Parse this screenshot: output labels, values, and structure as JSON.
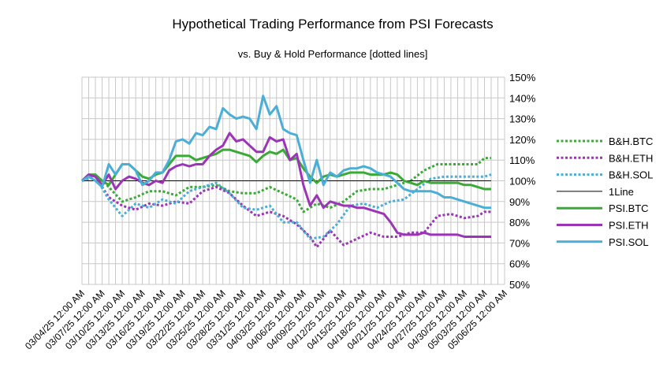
{
  "chart_data": {
    "type": "line",
    "title": "Hypothetical Trading Performance from PSI Forecasts",
    "subtitle": "vs. Buy & Hold Performance [dotted lines]",
    "xlabel": "",
    "ylabel": "",
    "ylim": [
      0.5,
      1.5
    ],
    "yticks": [
      "50%",
      "60%",
      "70%",
      "80%",
      "90%",
      "100%",
      "110%",
      "120%",
      "130%",
      "140%",
      "150%"
    ],
    "x_tick_labels": [
      "03/04/25 12:00 AM",
      "03/07/25 12:00 AM",
      "03/10/25 12:00 AM",
      "03/13/25 12:00 AM",
      "03/16/25 12:00 AM",
      "03/19/25 12:00 AM",
      "03/22/25 12:00 AM",
      "03/25/25 12:00 AM",
      "03/28/25 12:00 AM",
      "03/31/25 12:00 AM",
      "04/03/25 12:00 AM",
      "04/06/25 12:00 AM",
      "04/09/25 12:00 AM",
      "04/12/25 12:00 AM",
      "04/15/25 12:00 AM",
      "04/18/25 12:00 AM",
      "04/21/25 12:00 AM",
      "04/24/25 12:00 AM",
      "04/27/25 12:00 AM",
      "04/30/25 12:00 AM",
      "05/03/25 12:00 AM",
      "05/06/25 12:00 AM"
    ],
    "x_days": 63,
    "grid": true,
    "legend_position": "right",
    "series": [
      {
        "name": "B&H.BTC",
        "color": "#3aa935",
        "dash": "dotted",
        "points": [
          [
            0,
            1.0
          ],
          [
            2,
            1.03
          ],
          [
            4,
            0.97
          ],
          [
            6,
            0.9
          ],
          [
            8,
            0.92
          ],
          [
            10,
            0.95
          ],
          [
            12,
            0.95
          ],
          [
            14,
            0.93
          ],
          [
            16,
            0.97
          ],
          [
            18,
            0.97
          ],
          [
            20,
            0.98
          ],
          [
            22,
            0.95
          ],
          [
            24,
            0.94
          ],
          [
            26,
            0.94
          ],
          [
            28,
            0.97
          ],
          [
            30,
            0.94
          ],
          [
            32,
            0.91
          ],
          [
            33,
            0.85
          ],
          [
            35,
            0.89
          ],
          [
            37,
            0.87
          ],
          [
            39,
            0.9
          ],
          [
            41,
            0.95
          ],
          [
            43,
            0.96
          ],
          [
            45,
            0.96
          ],
          [
            47,
            0.98
          ],
          [
            49,
            1.0
          ],
          [
            51,
            1.05
          ],
          [
            53,
            1.08
          ],
          [
            55,
            1.08
          ],
          [
            57,
            1.08
          ],
          [
            59,
            1.08
          ],
          [
            60,
            1.11
          ],
          [
            61,
            1.11
          ]
        ]
      },
      {
        "name": "B&H.ETH",
        "color": "#9b35b5",
        "dash": "dotted",
        "points": [
          [
            0,
            1.0
          ],
          [
            2,
            1.02
          ],
          [
            4,
            0.92
          ],
          [
            6,
            0.88
          ],
          [
            8,
            0.86
          ],
          [
            10,
            0.89
          ],
          [
            12,
            0.88
          ],
          [
            14,
            0.9
          ],
          [
            16,
            0.89
          ],
          [
            18,
            0.95
          ],
          [
            20,
            0.97
          ],
          [
            22,
            0.94
          ],
          [
            24,
            0.88
          ],
          [
            26,
            0.83
          ],
          [
            28,
            0.85
          ],
          [
            30,
            0.83
          ],
          [
            32,
            0.79
          ],
          [
            34,
            0.73
          ],
          [
            35,
            0.68
          ],
          [
            37,
            0.76
          ],
          [
            39,
            0.69
          ],
          [
            41,
            0.72
          ],
          [
            43,
            0.75
          ],
          [
            45,
            0.73
          ],
          [
            47,
            0.73
          ],
          [
            49,
            0.75
          ],
          [
            51,
            0.75
          ],
          [
            53,
            0.83
          ],
          [
            55,
            0.84
          ],
          [
            57,
            0.82
          ],
          [
            59,
            0.83
          ],
          [
            60,
            0.85
          ],
          [
            61,
            0.85
          ]
        ]
      },
      {
        "name": "B&H.SOL",
        "color": "#4aaed6",
        "dash": "dotted",
        "points": [
          [
            0,
            1.0
          ],
          [
            2,
            1.02
          ],
          [
            4,
            0.91
          ],
          [
            6,
            0.83
          ],
          [
            8,
            0.89
          ],
          [
            10,
            0.87
          ],
          [
            12,
            0.91
          ],
          [
            14,
            0.89
          ],
          [
            16,
            0.95
          ],
          [
            18,
            0.97
          ],
          [
            20,
            0.99
          ],
          [
            22,
            0.94
          ],
          [
            24,
            0.87
          ],
          [
            26,
            0.86
          ],
          [
            28,
            0.88
          ],
          [
            30,
            0.8
          ],
          [
            32,
            0.8
          ],
          [
            34,
            0.72
          ],
          [
            36,
            0.73
          ],
          [
            38,
            0.79
          ],
          [
            40,
            0.88
          ],
          [
            42,
            0.89
          ],
          [
            44,
            0.87
          ],
          [
            46,
            0.9
          ],
          [
            48,
            0.91
          ],
          [
            50,
            0.96
          ],
          [
            52,
            1.01
          ],
          [
            54,
            1.02
          ],
          [
            56,
            1.02
          ],
          [
            58,
            1.02
          ],
          [
            60,
            1.02
          ],
          [
            61,
            1.03
          ]
        ]
      },
      {
        "name": "1Line",
        "color": "#000000",
        "dash": "solid",
        "thin": true,
        "points": [
          [
            0,
            1.0
          ],
          [
            61,
            1.0
          ]
        ]
      },
      {
        "name": "PSI.BTC",
        "color": "#3aa935",
        "dash": "solid",
        "points": [
          [
            0,
            1.0
          ],
          [
            1,
            1.03
          ],
          [
            2,
            1.03
          ],
          [
            3,
            1.0
          ],
          [
            4,
            0.98
          ],
          [
            5,
            1.03
          ],
          [
            6,
            1.08
          ],
          [
            7,
            1.08
          ],
          [
            8,
            1.05
          ],
          [
            9,
            1.02
          ],
          [
            10,
            1.01
          ],
          [
            11,
            1.03
          ],
          [
            12,
            1.04
          ],
          [
            13,
            1.08
          ],
          [
            14,
            1.12
          ],
          [
            15,
            1.12
          ],
          [
            16,
            1.12
          ],
          [
            17,
            1.1
          ],
          [
            18,
            1.11
          ],
          [
            19,
            1.12
          ],
          [
            20,
            1.13
          ],
          [
            21,
            1.15
          ],
          [
            22,
            1.15
          ],
          [
            23,
            1.14
          ],
          [
            24,
            1.13
          ],
          [
            25,
            1.12
          ],
          [
            26,
            1.09
          ],
          [
            27,
            1.12
          ],
          [
            28,
            1.14
          ],
          [
            29,
            1.13
          ],
          [
            30,
            1.15
          ],
          [
            31,
            1.1
          ],
          [
            32,
            1.11
          ],
          [
            33,
            1.06
          ],
          [
            34,
            1.02
          ],
          [
            35,
            0.99
          ],
          [
            36,
            1.02
          ],
          [
            37,
            1.03
          ],
          [
            38,
            1.02
          ],
          [
            39,
            1.03
          ],
          [
            40,
            1.04
          ],
          [
            41,
            1.04
          ],
          [
            42,
            1.04
          ],
          [
            43,
            1.03
          ],
          [
            44,
            1.03
          ],
          [
            45,
            1.03
          ],
          [
            46,
            1.04
          ],
          [
            47,
            1.03
          ],
          [
            48,
            1.0
          ],
          [
            49,
            0.99
          ],
          [
            50,
            0.98
          ],
          [
            51,
            1.0
          ],
          [
            52,
            0.99
          ],
          [
            53,
            0.99
          ],
          [
            54,
            0.99
          ],
          [
            55,
            0.99
          ],
          [
            56,
            0.99
          ],
          [
            57,
            0.98
          ],
          [
            58,
            0.98
          ],
          [
            59,
            0.97
          ],
          [
            60,
            0.96
          ],
          [
            61,
            0.96
          ]
        ]
      },
      {
        "name": "PSI.ETH",
        "color": "#9b35b5",
        "dash": "solid",
        "points": [
          [
            0,
            1.0
          ],
          [
            1,
            1.03
          ],
          [
            2,
            1.02
          ],
          [
            3,
            0.98
          ],
          [
            4,
            1.03
          ],
          [
            5,
            0.96
          ],
          [
            6,
            1.0
          ],
          [
            7,
            1.02
          ],
          [
            8,
            1.01
          ],
          [
            9,
            0.99
          ],
          [
            10,
            0.98
          ],
          [
            11,
            1.0
          ],
          [
            12,
            0.99
          ],
          [
            13,
            1.05
          ],
          [
            14,
            1.07
          ],
          [
            15,
            1.08
          ],
          [
            16,
            1.07
          ],
          [
            17,
            1.08
          ],
          [
            18,
            1.08
          ],
          [
            19,
            1.12
          ],
          [
            20,
            1.15
          ],
          [
            21,
            1.17
          ],
          [
            22,
            1.23
          ],
          [
            23,
            1.19
          ],
          [
            24,
            1.2
          ],
          [
            25,
            1.17
          ],
          [
            26,
            1.14
          ],
          [
            27,
            1.14
          ],
          [
            28,
            1.21
          ],
          [
            29,
            1.19
          ],
          [
            30,
            1.2
          ],
          [
            31,
            1.1
          ],
          [
            32,
            1.13
          ],
          [
            33,
            0.98
          ],
          [
            34,
            0.88
          ],
          [
            35,
            0.93
          ],
          [
            36,
            0.87
          ],
          [
            37,
            0.9
          ],
          [
            38,
            0.89
          ],
          [
            39,
            0.88
          ],
          [
            40,
            0.88
          ],
          [
            41,
            0.87
          ],
          [
            42,
            0.87
          ],
          [
            43,
            0.86
          ],
          [
            44,
            0.85
          ],
          [
            45,
            0.84
          ],
          [
            46,
            0.8
          ],
          [
            47,
            0.75
          ],
          [
            48,
            0.74
          ],
          [
            49,
            0.74
          ],
          [
            50,
            0.74
          ],
          [
            51,
            0.75
          ],
          [
            52,
            0.74
          ],
          [
            53,
            0.74
          ],
          [
            54,
            0.74
          ],
          [
            55,
            0.74
          ],
          [
            56,
            0.74
          ],
          [
            57,
            0.73
          ],
          [
            58,
            0.73
          ],
          [
            59,
            0.73
          ],
          [
            60,
            0.73
          ],
          [
            61,
            0.73
          ]
        ]
      },
      {
        "name": "PSI.SOL",
        "color": "#4aaed6",
        "dash": "solid",
        "points": [
          [
            0,
            1.0
          ],
          [
            1,
            1.02
          ],
          [
            2,
            1.0
          ],
          [
            3,
            0.97
          ],
          [
            4,
            1.08
          ],
          [
            5,
            1.03
          ],
          [
            6,
            1.08
          ],
          [
            7,
            1.08
          ],
          [
            8,
            1.05
          ],
          [
            9,
            0.98
          ],
          [
            10,
            1.0
          ],
          [
            11,
            1.04
          ],
          [
            12,
            1.04
          ],
          [
            13,
            1.1
          ],
          [
            14,
            1.19
          ],
          [
            15,
            1.2
          ],
          [
            16,
            1.18
          ],
          [
            17,
            1.23
          ],
          [
            18,
            1.22
          ],
          [
            19,
            1.26
          ],
          [
            20,
            1.25
          ],
          [
            21,
            1.35
          ],
          [
            22,
            1.32
          ],
          [
            23,
            1.3
          ],
          [
            24,
            1.31
          ],
          [
            25,
            1.3
          ],
          [
            26,
            1.25
          ],
          [
            27,
            1.41
          ],
          [
            28,
            1.32
          ],
          [
            29,
            1.36
          ],
          [
            30,
            1.25
          ],
          [
            31,
            1.23
          ],
          [
            32,
            1.22
          ],
          [
            33,
            1.1
          ],
          [
            34,
            0.99
          ],
          [
            35,
            1.1
          ],
          [
            36,
            0.98
          ],
          [
            37,
            1.04
          ],
          [
            38,
            1.02
          ],
          [
            39,
            1.05
          ],
          [
            40,
            1.06
          ],
          [
            41,
            1.06
          ],
          [
            42,
            1.07
          ],
          [
            43,
            1.06
          ],
          [
            44,
            1.04
          ],
          [
            45,
            1.03
          ],
          [
            46,
            1.02
          ],
          [
            47,
            0.99
          ],
          [
            48,
            0.96
          ],
          [
            49,
            0.95
          ],
          [
            50,
            0.95
          ],
          [
            51,
            0.95
          ],
          [
            52,
            0.95
          ],
          [
            53,
            0.94
          ],
          [
            54,
            0.92
          ],
          [
            55,
            0.92
          ],
          [
            56,
            0.91
          ],
          [
            57,
            0.9
          ],
          [
            58,
            0.89
          ],
          [
            59,
            0.88
          ],
          [
            60,
            0.87
          ],
          [
            61,
            0.87
          ]
        ]
      }
    ]
  }
}
